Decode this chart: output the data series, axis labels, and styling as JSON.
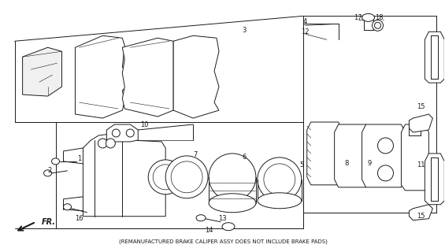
{
  "bg_color": "#ffffff",
  "line_color": "#1a1a1a",
  "footer_text": "(REMANUFACTURED BRAKE CALIPER ASSY DOES NOT INCLUDE BRAKE PADS)",
  "fr_label": "FR.",
  "fig_w": 5.65,
  "fig_h": 3.2,
  "dpi": 100
}
